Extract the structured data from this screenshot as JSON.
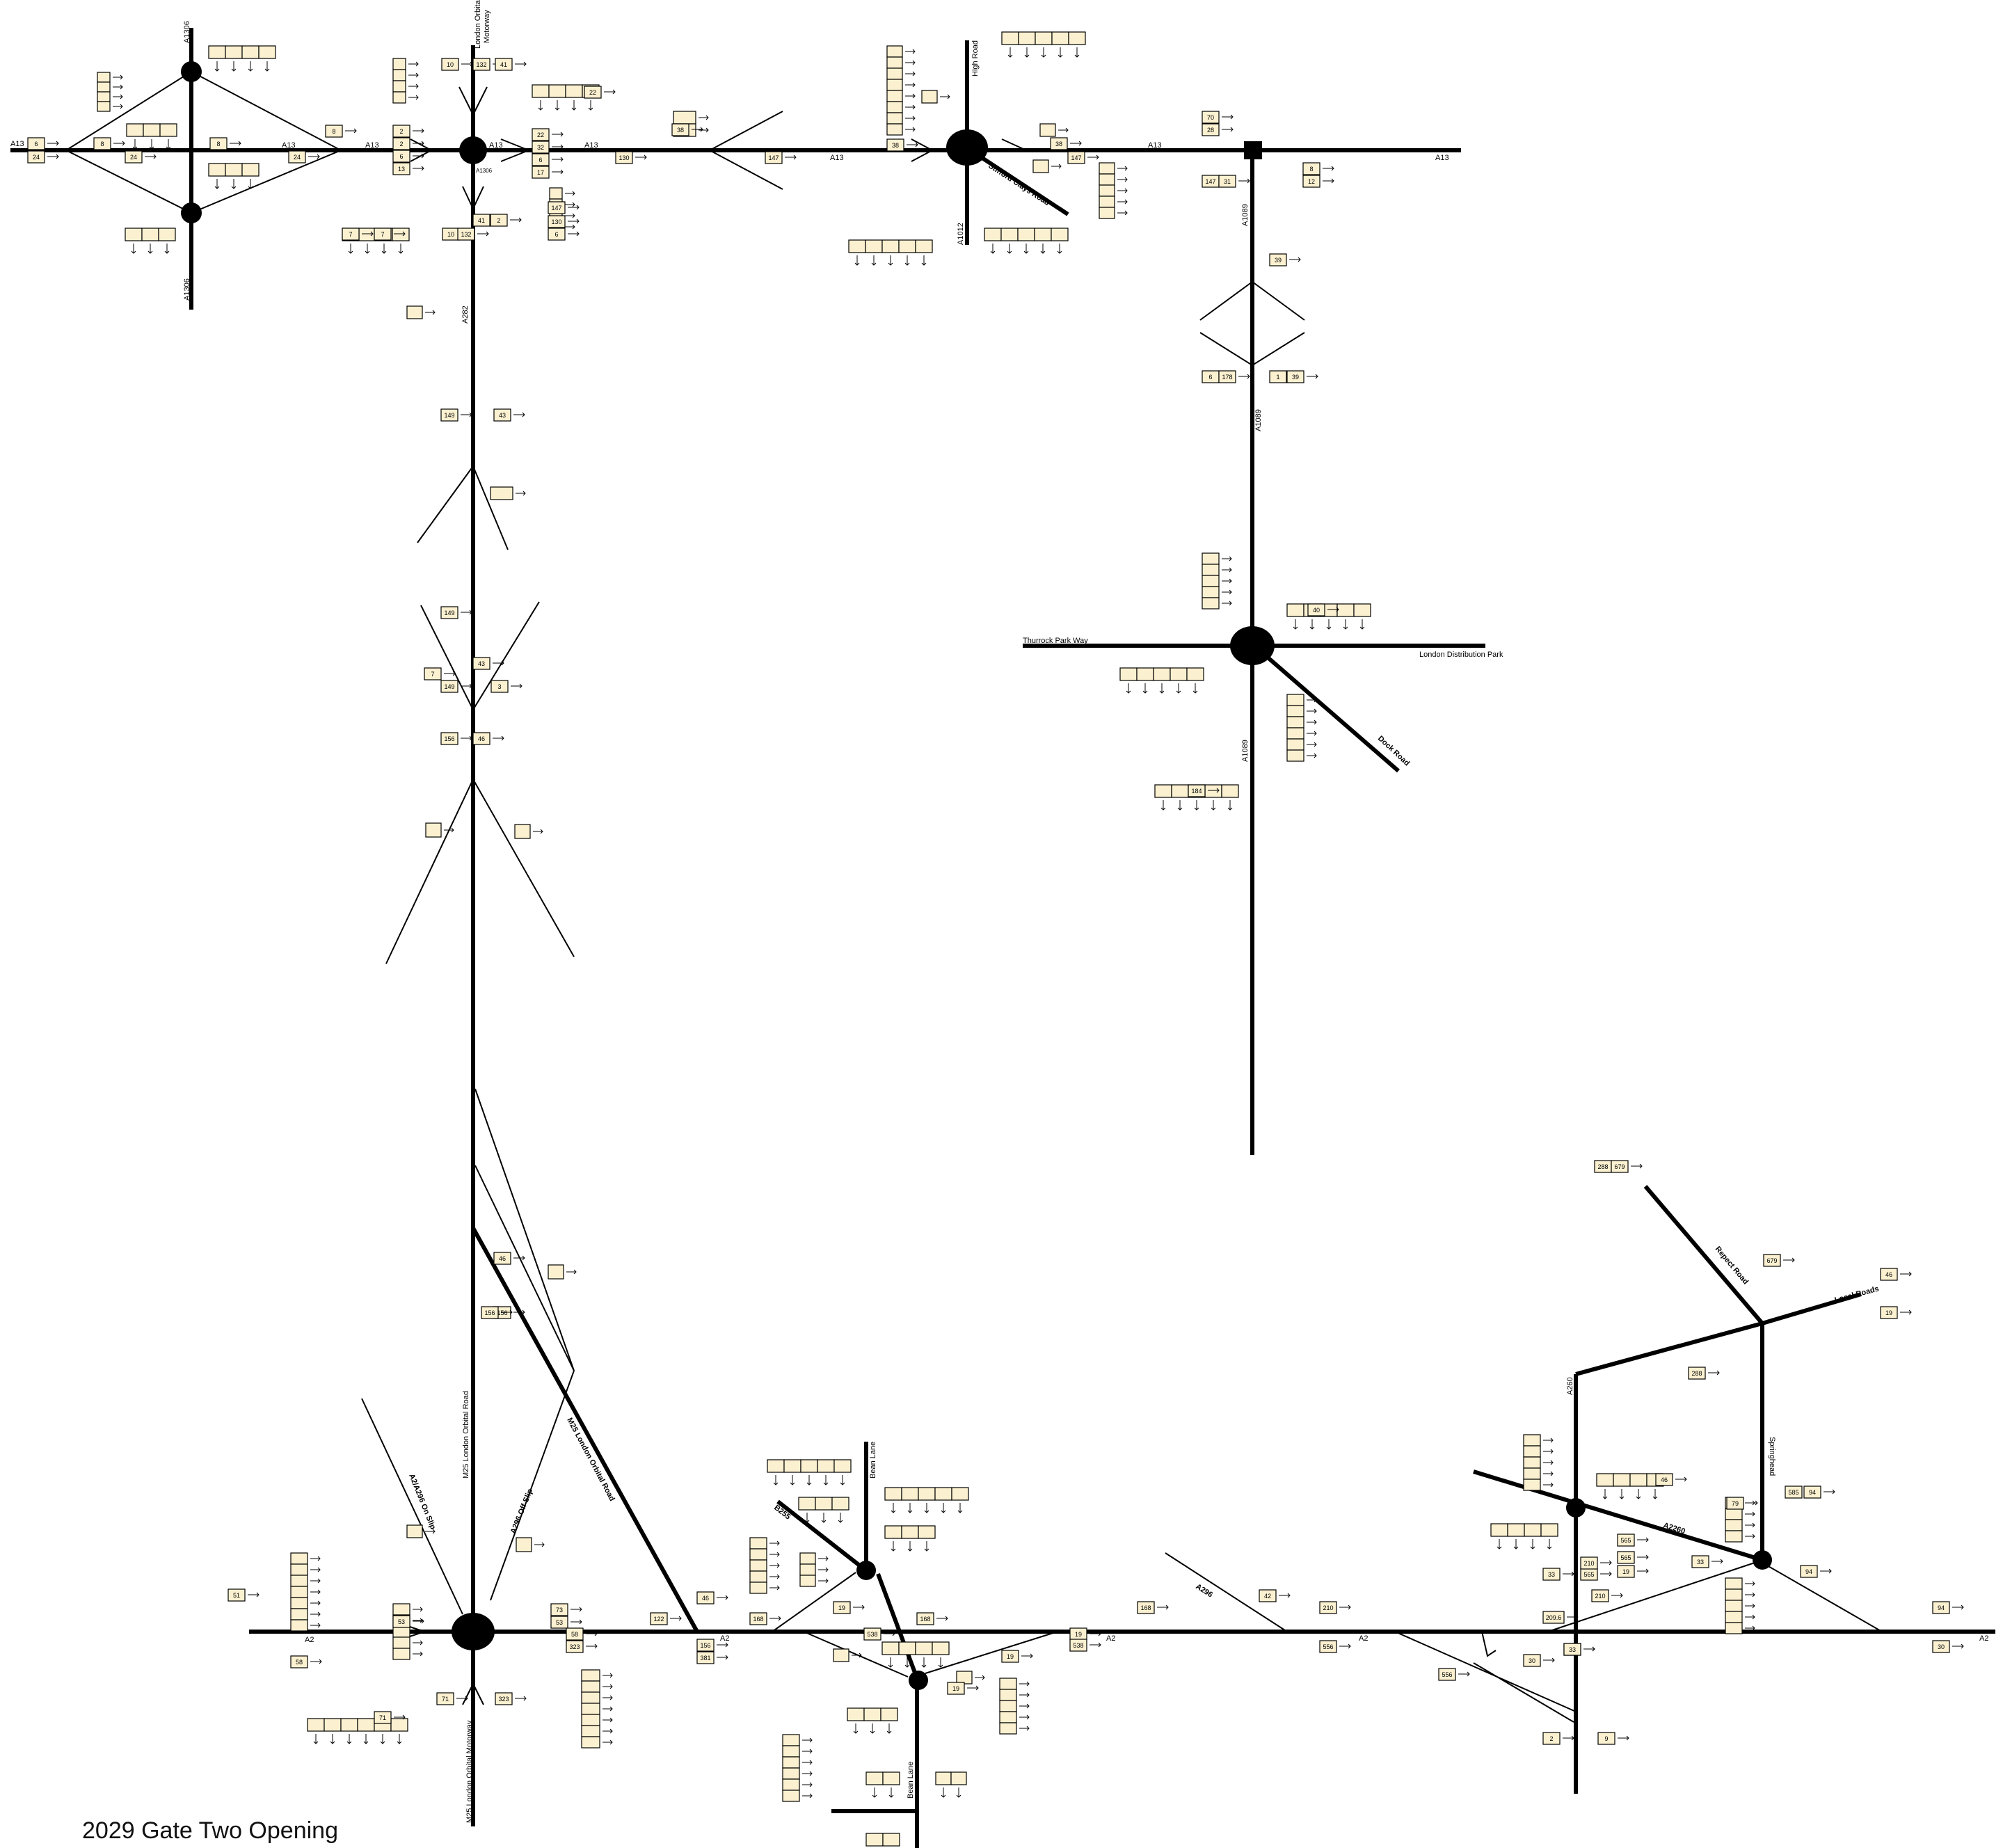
{
  "caption": "2029 Gate Two Opening",
  "road_labels": [
    {
      "id": "a13-w",
      "text": "A13"
    },
    {
      "id": "a13-2",
      "text": "A13"
    },
    {
      "id": "a13-3",
      "text": "A13"
    },
    {
      "id": "a13-4",
      "text": "A13"
    },
    {
      "id": "a13-5",
      "text": "A13"
    },
    {
      "id": "a13-6",
      "text": "A13"
    },
    {
      "id": "a13-7",
      "text": "A13"
    },
    {
      "id": "a13-8",
      "text": "A13"
    },
    {
      "id": "a1306-n",
      "text": "A1306"
    },
    {
      "id": "a1306-s",
      "text": "A1306"
    },
    {
      "id": "a1306-c",
      "text": "A1306"
    },
    {
      "id": "lom-1",
      "text": "London Orbital"
    },
    {
      "id": "lom-2",
      "text": "Motorway"
    },
    {
      "id": "a282",
      "text": "A282"
    },
    {
      "id": "high-road",
      "text": "High Road"
    },
    {
      "id": "a1012",
      "text": "A1012"
    },
    {
      "id": "stifford",
      "text": "Stifford Clays Road"
    },
    {
      "id": "a1089-n",
      "text": "A1089"
    },
    {
      "id": "a1089-m",
      "text": "A1089"
    },
    {
      "id": "a1089-s",
      "text": "A1089"
    },
    {
      "id": "thurrock",
      "text": "Thurrock Park Way"
    },
    {
      "id": "ldp",
      "text": "London Distribution Park"
    },
    {
      "id": "dock",
      "text": "Dock Road"
    },
    {
      "id": "m25-lor",
      "text": "M25 London Orbital Road"
    },
    {
      "id": "m25-lor2",
      "text": "M25 London Orbital Road"
    },
    {
      "id": "m25-lom",
      "text": "M25 London Orbital Motorway"
    },
    {
      "id": "a2-1",
      "text": "A2"
    },
    {
      "id": "a2-2",
      "text": "A2"
    },
    {
      "id": "a2-3",
      "text": "A2"
    },
    {
      "id": "a2-4",
      "text": "A2"
    },
    {
      "id": "a2-5",
      "text": "A2"
    },
    {
      "id": "a296-off",
      "text": "A296 Off Slip"
    },
    {
      "id": "a2-a296-on",
      "text": "A2/A296 On Slip"
    },
    {
      "id": "bean-n",
      "text": "Bean Lane"
    },
    {
      "id": "bean-s",
      "text": "Bean Lane"
    },
    {
      "id": "b255",
      "text": "B255"
    },
    {
      "id": "a296",
      "text": "A296"
    },
    {
      "id": "a260",
      "text": "A260"
    },
    {
      "id": "a2260",
      "text": "A2260"
    },
    {
      "id": "repect",
      "text": "Repect Road"
    },
    {
      "id": "local",
      "text": "Local Roads"
    },
    {
      "id": "sprin",
      "text": "Springhead"
    }
  ],
  "counts": [
    {
      "id": "c1",
      "v": "6"
    },
    {
      "id": "c2",
      "v": "24"
    },
    {
      "id": "c3",
      "v": "8"
    },
    {
      "id": "c4",
      "v": "24"
    },
    {
      "id": "c5",
      "v": "8"
    },
    {
      "id": "c6",
      "v": "24"
    },
    {
      "id": "c7",
      "v": "8"
    },
    {
      "id": "c8",
      "v": "2"
    },
    {
      "id": "c9",
      "v": "2"
    },
    {
      "id": "c10",
      "v": "6"
    },
    {
      "id": "c11",
      "v": "13"
    },
    {
      "id": "c12",
      "v": "7"
    },
    {
      "id": "c13",
      "v": "7"
    },
    {
      "id": "c14",
      "v": "10"
    },
    {
      "id": "c15",
      "v": "132"
    },
    {
      "id": "c16",
      "v": "41"
    },
    {
      "id": "c17",
      "v": "22"
    },
    {
      "id": "c18",
      "v": "22"
    },
    {
      "id": "c19",
      "v": "32"
    },
    {
      "id": "c20",
      "v": "6"
    },
    {
      "id": "c21",
      "v": "17"
    },
    {
      "id": "c22",
      "v": "130"
    },
    {
      "id": "c23",
      "v": "147"
    },
    {
      "id": "c24",
      "v": "130"
    },
    {
      "id": "c25",
      "v": "6"
    },
    {
      "id": "c26",
      "v": "41"
    },
    {
      "id": "c27",
      "v": "2"
    },
    {
      "id": "c28",
      "v": "10"
    },
    {
      "id": "c29",
      "v": "132"
    },
    {
      "id": "c30",
      "v": "38"
    },
    {
      "id": "c31",
      "v": "147"
    },
    {
      "id": "c32",
      "v": "38"
    },
    {
      "id": "c33",
      "v": "38"
    },
    {
      "id": "c34",
      "v": "147"
    },
    {
      "id": "c35",
      "v": "70"
    },
    {
      "id": "c36",
      "v": "28"
    },
    {
      "id": "c37",
      "v": "147"
    },
    {
      "id": "c38",
      "v": "31"
    },
    {
      "id": "c39",
      "v": "8"
    },
    {
      "id": "c40",
      "v": "12"
    },
    {
      "id": "c41",
      "v": "39"
    },
    {
      "id": "c42",
      "v": "6"
    },
    {
      "id": "c43",
      "v": "178"
    },
    {
      "id": "c44",
      "v": "1"
    },
    {
      "id": "c45",
      "v": "39"
    },
    {
      "id": "c46",
      "v": "40"
    },
    {
      "id": "c47",
      "v": "184"
    },
    {
      "id": "c48",
      "v": "149"
    },
    {
      "id": "c49",
      "v": "43"
    },
    {
      "id": "c50",
      "v": "149"
    },
    {
      "id": "c51",
      "v": "7"
    },
    {
      "id": "c52",
      "v": "149"
    },
    {
      "id": "c53",
      "v": "43"
    },
    {
      "id": "c54",
      "v": "3"
    },
    {
      "id": "c55",
      "v": "156"
    },
    {
      "id": "c56",
      "v": "46"
    },
    {
      "id": "c57",
      "v": "46"
    },
    {
      "id": "c58",
      "v": "156"
    },
    {
      "id": "c59",
      "v": "51"
    },
    {
      "id": "c60",
      "v": "53"
    },
    {
      "id": "c61",
      "v": "58"
    },
    {
      "id": "c62",
      "v": "73"
    },
    {
      "id": "c63",
      "v": "53"
    },
    {
      "id": "c64",
      "v": "58"
    },
    {
      "id": "c65",
      "v": "323"
    },
    {
      "id": "c66",
      "v": "71"
    },
    {
      "id": "c67",
      "v": "323"
    },
    {
      "id": "c68",
      "v": "71"
    },
    {
      "id": "c69",
      "v": "122"
    },
    {
      "id": "c70",
      "v": "46"
    },
    {
      "id": "c71",
      "v": "156"
    },
    {
      "id": "c72",
      "v": "381"
    },
    {
      "id": "c73",
      "v": "168"
    },
    {
      "id": "c74",
      "v": "19"
    },
    {
      "id": "c75",
      "v": "538"
    },
    {
      "id": "c76",
      "v": "168"
    },
    {
      "id": "c77",
      "v": "19"
    },
    {
      "id": "c78",
      "v": "19"
    },
    {
      "id": "c79",
      "v": "538"
    },
    {
      "id": "c80",
      "v": "19"
    },
    {
      "id": "c81",
      "v": "168"
    },
    {
      "id": "c82",
      "v": "42"
    },
    {
      "id": "c83",
      "v": "210"
    },
    {
      "id": "c84",
      "v": "556"
    },
    {
      "id": "c85",
      "v": "556"
    },
    {
      "id": "c86",
      "v": "30"
    },
    {
      "id": "c87",
      "v": "33"
    },
    {
      "id": "c88",
      "v": "565"
    },
    {
      "id": "c89",
      "v": "556"
    },
    {
      "id": "c90",
      "v": "2"
    },
    {
      "id": "c91",
      "v": "9"
    },
    {
      "id": "c92",
      "v": "209.6"
    },
    {
      "id": "c93",
      "v": "33"
    },
    {
      "id": "c94",
      "v": "565"
    },
    {
      "id": "c95",
      "v": "19"
    },
    {
      "id": "c96",
      "v": "565"
    },
    {
      "id": "c97",
      "v": "210"
    },
    {
      "id": "c98",
      "v": "210"
    },
    {
      "id": "c99",
      "v": "33"
    },
    {
      "id": "c100",
      "v": "46"
    },
    {
      "id": "c101",
      "v": "79"
    },
    {
      "id": "c102",
      "v": "585"
    },
    {
      "id": "c103",
      "v": "94"
    },
    {
      "id": "c104",
      "v": "94"
    },
    {
      "id": "c105",
      "v": "94"
    },
    {
      "id": "c106",
      "v": "30"
    },
    {
      "id": "c107",
      "v": "288"
    },
    {
      "id": "c108",
      "v": "679"
    },
    {
      "id": "c109",
      "v": "679"
    },
    {
      "id": "c110",
      "v": "46"
    },
    {
      "id": "c111",
      "v": "19"
    },
    {
      "id": "c112",
      "v": "288"
    },
    {
      "id": "c113",
      "v": "156"
    }
  ]
}
